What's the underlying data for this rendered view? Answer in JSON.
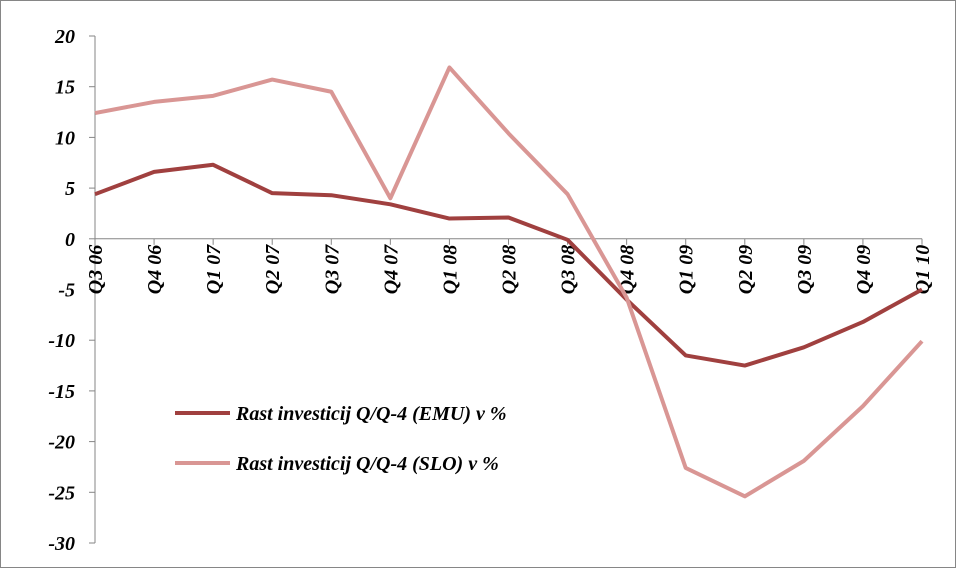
{
  "chart_data": {
    "type": "line",
    "categories": [
      "Q3 06",
      "Q4 06",
      "Q1 07",
      "Q2 07",
      "Q3 07",
      "Q4 07",
      "Q1 08",
      "Q2 08",
      "Q3 08",
      "Q4 08",
      "Q1 09",
      "Q2 09",
      "Q3 09",
      "Q4 09",
      "Q1 10"
    ],
    "series": [
      {
        "name": "Rast investicij Q/Q-4 (EMU) v %",
        "color": "#a0403f",
        "values": [
          4.4,
          6.6,
          7.3,
          4.5,
          4.3,
          3.4,
          2.0,
          2.1,
          -0.1,
          -6.0,
          -11.5,
          -12.5,
          -10.7,
          -8.2,
          -5.0
        ]
      },
      {
        "name": "Rast investicij Q/Q-4 (SLO) v %",
        "color": "#d99694",
        "values": [
          12.4,
          13.5,
          14.1,
          15.7,
          14.5,
          4.0,
          16.9,
          10.4,
          4.4,
          -5.8,
          -22.6,
          -25.4,
          -21.9,
          -16.5,
          -10.1
        ]
      }
    ],
    "ylim": [
      -30,
      20
    ],
    "yticks": [
      -30,
      -25,
      -20,
      -15,
      -10,
      -5,
      0,
      5,
      10,
      15,
      20
    ],
    "legend": "lower left"
  }
}
